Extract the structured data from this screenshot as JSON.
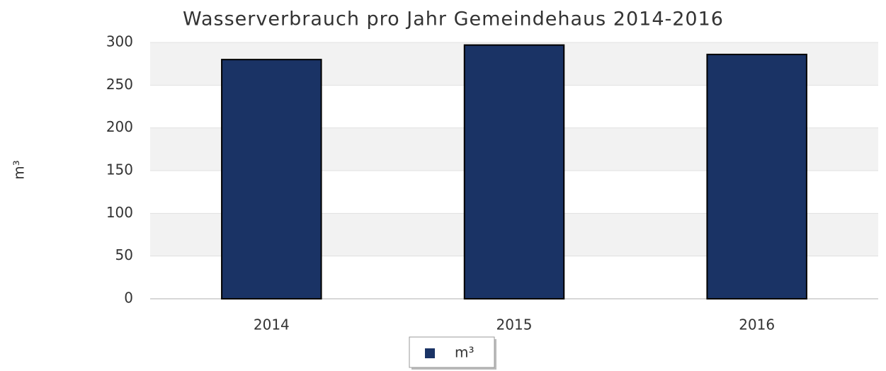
{
  "chart_data": {
    "type": "bar",
    "title": "Wasserverbrauch pro Jahr Gemeindehaus 2014-2016",
    "y_label": "m³",
    "categories": [
      "2014",
      "2015",
      "2016"
    ],
    "series": [
      {
        "name": "m³",
        "color": "#1a3365",
        "values": [
          280,
          297,
          286
        ]
      }
    ],
    "ylim": [
      0,
      300
    ],
    "yticks": [
      0,
      50,
      100,
      150,
      200,
      250,
      300
    ],
    "grid": true,
    "legend": "bottom"
  }
}
